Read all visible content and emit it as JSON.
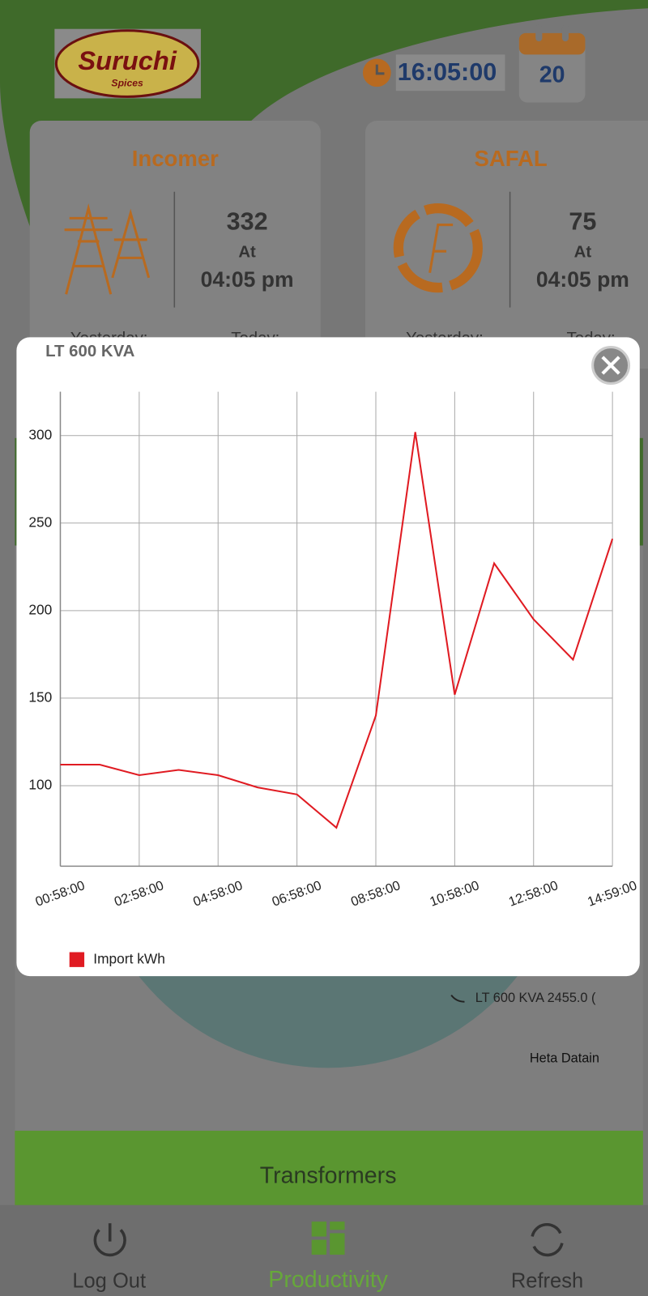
{
  "header": {
    "logo_title": "Suruchi",
    "logo_subtitle": "Spices",
    "time": "16:05:00",
    "date": "20"
  },
  "cards": [
    {
      "title": "Incomer",
      "value": 332,
      "at": "At",
      "time": "04:05 pm",
      "yesterday": "Yesterday:",
      "today": "Today:"
    },
    {
      "title": "SAFAL",
      "value": 75,
      "at": "At",
      "time": "04:05 pm",
      "yesterday": "Yesterday:",
      "today": "Today:"
    }
  ],
  "background": {
    "legend_entry": "LT 600 KVA 2455.0 (",
    "note": "Heta Datain",
    "section": "Transformers"
  },
  "nav": [
    "Log Out",
    "Productivity",
    "Refresh"
  ],
  "popup": {
    "title": "LT 600 KVA"
  },
  "chart_data": {
    "type": "line",
    "categories": [
      "00:58:00",
      null,
      "02:58:00",
      null,
      "04:58:00",
      null,
      "06:58:00",
      null,
      "08:58:00",
      null,
      "10:58:00",
      null,
      "12:58:00",
      null,
      "14:59:00"
    ],
    "series": [
      {
        "name": "Import kWh",
        "color": "#e01b22",
        "values": [
          112,
          112,
          106,
          109,
          106,
          99,
          95,
          76,
          140,
          302,
          152,
          227,
          195,
          172,
          241
        ]
      }
    ],
    "ylim": [
      54,
      325
    ],
    "yticks": [
      100,
      150,
      200,
      250,
      300
    ],
    "grid": true
  }
}
